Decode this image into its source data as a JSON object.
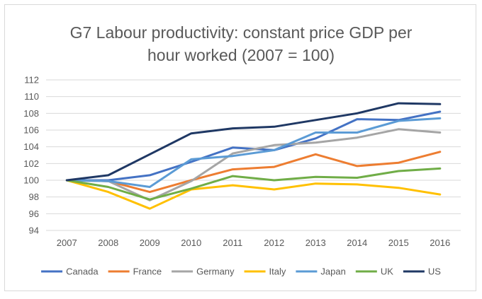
{
  "chart_data": {
    "type": "line",
    "title_line1": "G7 Labour productivity: constant price GDP per",
    "title_line2": "hour worked (2007 = 100)",
    "xlabel": "",
    "ylabel": "",
    "ylim": [
      94,
      112
    ],
    "ytick_step": 2,
    "grid": true,
    "legend_position": "bottom",
    "categories": [
      "2007",
      "2008",
      "2009",
      "2010",
      "2011",
      "2012",
      "2013",
      "2014",
      "2015",
      "2016"
    ],
    "series": [
      {
        "name": "Canada",
        "color": "#4472c4",
        "values": [
          100,
          100.0,
          100.6,
          102.2,
          103.9,
          103.6,
          105.0,
          107.3,
          107.2,
          108.2
        ]
      },
      {
        "name": "France",
        "color": "#ed7d31",
        "values": [
          100,
          99.9,
          98.6,
          100.0,
          101.3,
          101.6,
          103.1,
          101.7,
          102.1,
          103.4
        ]
      },
      {
        "name": "Germany",
        "color": "#a5a5a5",
        "values": [
          100,
          99.9,
          97.6,
          99.9,
          103.2,
          104.2,
          104.5,
          105.1,
          106.1,
          105.7
        ]
      },
      {
        "name": "Italy",
        "color": "#ffc000",
        "values": [
          100,
          98.6,
          96.6,
          98.9,
          99.4,
          98.9,
          99.6,
          99.5,
          99.1,
          98.3
        ]
      },
      {
        "name": "Japan",
        "color": "#5b9bd5",
        "values": [
          100,
          99.9,
          99.2,
          102.5,
          102.9,
          103.6,
          105.7,
          105.7,
          107.1,
          107.4
        ]
      },
      {
        "name": "UK",
        "color": "#70ad47",
        "values": [
          100,
          99.2,
          97.7,
          99.0,
          100.5,
          100.0,
          100.4,
          100.3,
          101.1,
          101.4
        ]
      },
      {
        "name": "US",
        "color": "#1f3864",
        "values": [
          100,
          100.6,
          103.1,
          105.6,
          106.2,
          106.4,
          107.2,
          108.0,
          109.2,
          109.1
        ]
      }
    ]
  }
}
